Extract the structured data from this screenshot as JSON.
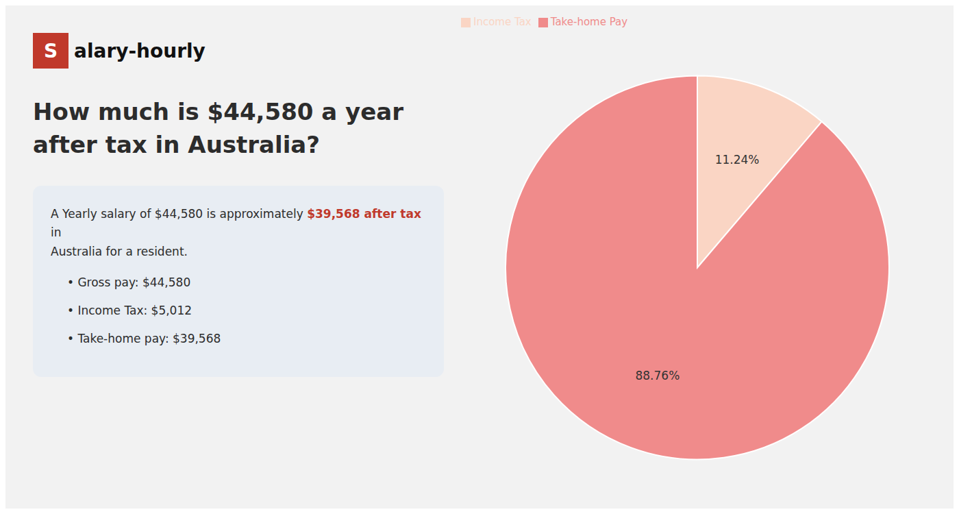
{
  "chart_data": {
    "type": "pie",
    "title": "How much is $44,580 a year after tax in Australia?",
    "categories": [
      "Income Tax",
      "Take-home Pay"
    ],
    "values": [
      11.24,
      88.76
    ],
    "value_labels": [
      "11.24%",
      "88.76%"
    ],
    "colors": [
      "#fad5c4",
      "#f08b8b"
    ],
    "data_labels": true,
    "legend": "upper left",
    "annotations": [
      {
        "text": "S",
        "color": "#c0392b"
      },
      {
        "text": "alary-hourly"
      },
      {
        "text": "A Yearly salary of $44,580 is approximately"
      },
      {
        "text": "$39,568 after tax",
        "color": "#c0392b"
      },
      {
        "text": "in"
      },
      {
        "text": "Australia for a resident."
      },
      {
        "text": "• Gross pay: $44,580"
      },
      {
        "text": "• Income Tax: $5,012"
      },
      {
        "text": "• Take-home pay: $39,568"
      }
    ]
  }
}
